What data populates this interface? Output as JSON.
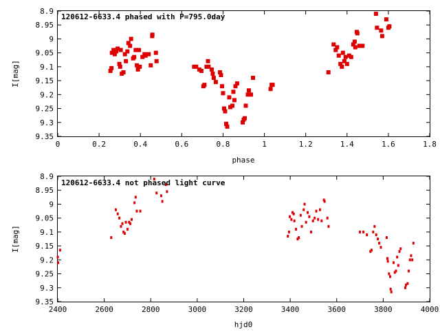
{
  "chart_data": [
    {
      "type": "scatter",
      "title": "120612-6633.4 phased with P=795.0day",
      "xlabel": "phase",
      "ylabel": "I[mag]",
      "xlim": [
        0,
        1.8
      ],
      "ylim": [
        9.35,
        8.9
      ],
      "y_inverted": true,
      "grid": false,
      "marker_color": "#dd0000",
      "xticks": [
        "0",
        "0.2",
        "0.4",
        "0.6",
        "0.8",
        "1",
        "1.2",
        "1.4",
        "1.6",
        "1.8"
      ],
      "yticks": [
        "8.9",
        "8.95",
        "9",
        "9.05",
        "9.1",
        "9.15",
        "9.2",
        "9.25",
        "9.3",
        "9.35"
      ],
      "points": [
        [
          0.255,
          9.115
        ],
        [
          0.26,
          9.105
        ],
        [
          0.262,
          9.05
        ],
        [
          0.27,
          9.04
        ],
        [
          0.276,
          9.055
        ],
        [
          0.283,
          9.045
        ],
        [
          0.29,
          9.035
        ],
        [
          0.298,
          9.09
        ],
        [
          0.302,
          9.1
        ],
        [
          0.305,
          9.04
        ],
        [
          0.31,
          9.125
        ],
        [
          0.318,
          9.12
        ],
        [
          0.325,
          9.055
        ],
        [
          0.33,
          9.08
        ],
        [
          0.337,
          9.045
        ],
        [
          0.342,
          9.015
        ],
        [
          0.35,
          9.025
        ],
        [
          0.355,
          9.0
        ],
        [
          0.365,
          9.07
        ],
        [
          0.37,
          9.065
        ],
        [
          0.377,
          9.04
        ],
        [
          0.383,
          9.095
        ],
        [
          0.388,
          9.11
        ],
        [
          0.393,
          9.04
        ],
        [
          0.397,
          9.1
        ],
        [
          0.41,
          9.065
        ],
        [
          0.42,
          9.055
        ],
        [
          0.425,
          9.06
        ],
        [
          0.44,
          9.055
        ],
        [
          0.45,
          9.095
        ],
        [
          0.457,
          8.99
        ],
        [
          0.458,
          8.985
        ],
        [
          0.475,
          9.05
        ],
        [
          0.478,
          9.08
        ],
        [
          0.66,
          9.1
        ],
        [
          0.67,
          9.1
        ],
        [
          0.685,
          9.11
        ],
        [
          0.695,
          9.115
        ],
        [
          0.705,
          9.17
        ],
        [
          0.71,
          9.165
        ],
        [
          0.72,
          9.1
        ],
        [
          0.727,
          9.08
        ],
        [
          0.73,
          9.1
        ],
        [
          0.745,
          9.11
        ],
        [
          0.75,
          9.125
        ],
        [
          0.755,
          9.14
        ],
        [
          0.765,
          9.155
        ],
        [
          0.785,
          9.12
        ],
        [
          0.79,
          9.13
        ],
        [
          0.795,
          9.17
        ],
        [
          0.8,
          9.195
        ],
        [
          0.805,
          9.25
        ],
        [
          0.81,
          9.26
        ],
        [
          0.815,
          9.305
        ],
        [
          0.82,
          9.315
        ],
        [
          0.83,
          9.21
        ],
        [
          0.835,
          9.245
        ],
        [
          0.845,
          9.24
        ],
        [
          0.85,
          9.19
        ],
        [
          0.855,
          9.22
        ],
        [
          0.86,
          9.17
        ],
        [
          0.868,
          9.16
        ],
        [
          0.895,
          9.3
        ],
        [
          0.9,
          9.29
        ],
        [
          0.905,
          9.285
        ],
        [
          0.91,
          9.24
        ],
        [
          0.92,
          9.2
        ],
        [
          0.925,
          9.185
        ],
        [
          0.935,
          9.2
        ],
        [
          0.945,
          9.14
        ],
        [
          1.03,
          9.18
        ],
        [
          1.035,
          9.165
        ],
        [
          1.04,
          9.165
        ],
        [
          1.31,
          9.12
        ],
        [
          1.335,
          9.02
        ],
        [
          1.345,
          9.04
        ],
        [
          1.352,
          9.03
        ],
        [
          1.36,
          9.06
        ],
        [
          1.368,
          9.09
        ],
        [
          1.375,
          9.1
        ],
        [
          1.38,
          9.05
        ],
        [
          1.387,
          9.08
        ],
        [
          1.393,
          9.065
        ],
        [
          1.4,
          9.09
        ],
        [
          1.41,
          9.06
        ],
        [
          1.42,
          9.065
        ],
        [
          1.43,
          9.02
        ],
        [
          1.437,
          9.01
        ],
        [
          1.44,
          9.03
        ],
        [
          1.447,
          8.975
        ],
        [
          1.45,
          8.98
        ],
        [
          1.46,
          9.025
        ],
        [
          1.475,
          9.025
        ],
        [
          1.54,
          8.91
        ],
        [
          1.545,
          8.96
        ],
        [
          1.565,
          8.97
        ],
        [
          1.57,
          8.99
        ],
        [
          1.59,
          8.93
        ],
        [
          1.6,
          8.96
        ],
        [
          1.605,
          8.955
        ]
      ]
    },
    {
      "type": "scatter",
      "title": "120612-6633.4 not phased light curve",
      "xlabel": "hjd0",
      "ylabel": "I[mag]",
      "xlim": [
        2400,
        4000
      ],
      "ylim": [
        9.35,
        8.9
      ],
      "y_inverted": true,
      "grid": false,
      "marker_color": "#dd0000",
      "xticks": [
        "2400",
        "2600",
        "2800",
        "3000",
        "3200",
        "3400",
        "3600",
        "3800",
        "4000"
      ],
      "yticks": [
        "8.9",
        "8.95",
        "9",
        "9.05",
        "9.1",
        "9.15",
        "9.2",
        "9.25",
        "9.3",
        "9.35"
      ],
      "points": [
        [
          2400,
          9.19
        ],
        [
          2402,
          9.21
        ],
        [
          2410,
          9.165
        ],
        [
          2630,
          9.12
        ],
        [
          2650,
          9.02
        ],
        [
          2658,
          9.035
        ],
        [
          2665,
          9.05
        ],
        [
          2672,
          9.08
        ],
        [
          2678,
          9.07
        ],
        [
          2683,
          9.1
        ],
        [
          2688,
          9.105
        ],
        [
          2693,
          9.065
        ],
        [
          2700,
          9.09
        ],
        [
          2707,
          9.065
        ],
        [
          2712,
          9.07
        ],
        [
          2718,
          9.055
        ],
        [
          2730,
          8.995
        ],
        [
          2735,
          8.975
        ],
        [
          2740,
          9.025
        ],
        [
          2755,
          9.025
        ],
        [
          2815,
          8.91
        ],
        [
          2825,
          8.96
        ],
        [
          2845,
          8.97
        ],
        [
          2850,
          8.99
        ],
        [
          2865,
          8.93
        ],
        [
          2870,
          8.955
        ],
        [
          3390,
          9.115
        ],
        [
          3395,
          9.1
        ],
        [
          3398,
          9.045
        ],
        [
          3405,
          9.055
        ],
        [
          3410,
          9.03
        ],
        [
          3415,
          9.035
        ],
        [
          3418,
          9.06
        ],
        [
          3425,
          9.09
        ],
        [
          3432,
          9.125
        ],
        [
          3437,
          9.12
        ],
        [
          3445,
          9.04
        ],
        [
          3450,
          9.08
        ],
        [
          3458,
          9.02
        ],
        [
          3462,
          9.0
        ],
        [
          3468,
          9.065
        ],
        [
          3475,
          9.03
        ],
        [
          3482,
          9.045
        ],
        [
          3490,
          9.1
        ],
        [
          3498,
          9.06
        ],
        [
          3505,
          9.05
        ],
        [
          3512,
          9.025
        ],
        [
          3520,
          9.055
        ],
        [
          3528,
          9.02
        ],
        [
          3535,
          9.06
        ],
        [
          3545,
          8.985
        ],
        [
          3548,
          8.99
        ],
        [
          3560,
          9.05
        ],
        [
          3565,
          9.08
        ],
        [
          3700,
          9.1
        ],
        [
          3715,
          9.1
        ],
        [
          3730,
          9.11
        ],
        [
          3745,
          9.17
        ],
        [
          3750,
          9.165
        ],
        [
          3757,
          9.1
        ],
        [
          3763,
          9.08
        ],
        [
          3770,
          9.11
        ],
        [
          3777,
          9.125
        ],
        [
          3783,
          9.14
        ],
        [
          3790,
          9.155
        ],
        [
          3815,
          9.12
        ],
        [
          3818,
          9.195
        ],
        [
          3820,
          9.205
        ],
        [
          3825,
          9.25
        ],
        [
          3830,
          9.26
        ],
        [
          3832,
          9.305
        ],
        [
          3835,
          9.315
        ],
        [
          3845,
          9.21
        ],
        [
          3850,
          9.245
        ],
        [
          3855,
          9.24
        ],
        [
          3860,
          9.19
        ],
        [
          3865,
          9.22
        ],
        [
          3870,
          9.17
        ],
        [
          3875,
          9.16
        ],
        [
          3895,
          9.3
        ],
        [
          3898,
          9.29
        ],
        [
          3905,
          9.285
        ],
        [
          3910,
          9.24
        ],
        [
          3915,
          9.2
        ],
        [
          3920,
          9.185
        ],
        [
          3925,
          9.2
        ],
        [
          3930,
          9.14
        ]
      ]
    }
  ]
}
